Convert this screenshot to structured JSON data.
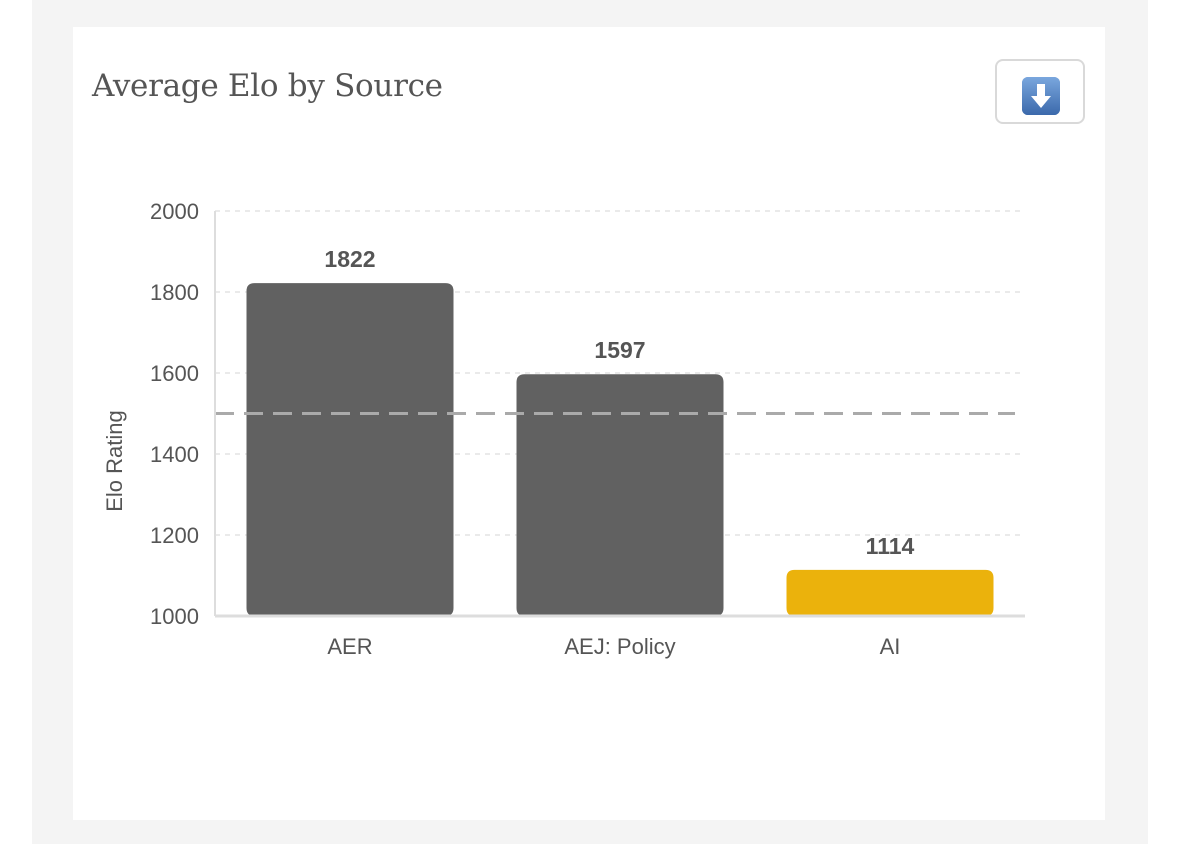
{
  "card": {
    "title": "Average Elo by Source"
  },
  "toolbar": {
    "download_icon": "down-arrow-icon"
  },
  "colors": {
    "bar_default": "#616161",
    "bar_highlight": "#ebb20c",
    "grid": "#e4e4e4",
    "reference_line": "#aaaaaa",
    "axis": "#dddddd"
  },
  "chart_data": {
    "type": "bar",
    "title": "Average Elo by Source",
    "xlabel": "",
    "ylabel": "Elo Rating",
    "ylim": [
      1000,
      2000
    ],
    "yticks": [
      1000,
      1200,
      1400,
      1600,
      1800,
      2000
    ],
    "categories": [
      "AER",
      "AEJ: Policy",
      "AI"
    ],
    "values": [
      1822,
      1597,
      1114
    ],
    "data_labels": [
      "1822",
      "1597",
      "1114"
    ],
    "highlight_category": "AI",
    "reference_line": 1500,
    "grid": true,
    "legend": "none"
  }
}
